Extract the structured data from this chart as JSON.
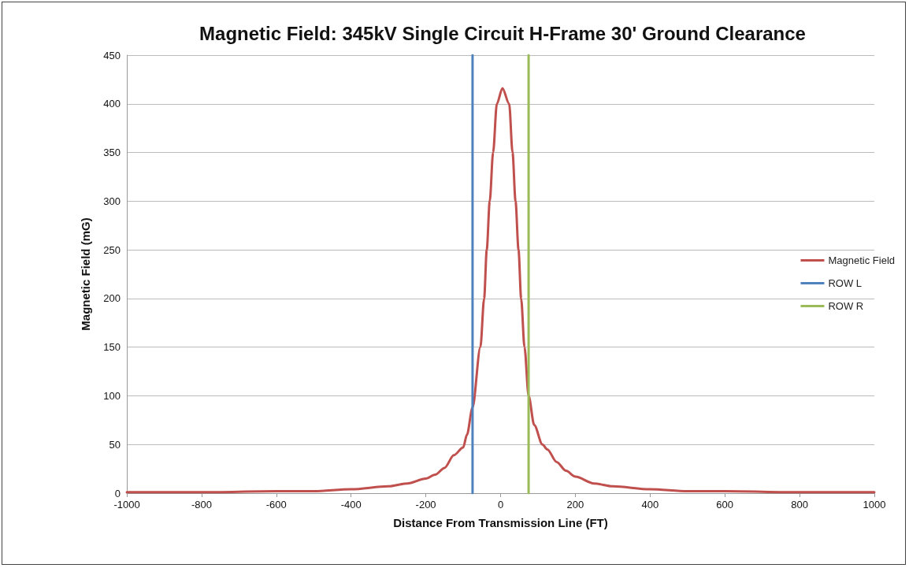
{
  "chart_data": {
    "type": "line",
    "title": "Magnetic Field: 345kV Single Circuit H-Frame 30' Ground Clearance",
    "xlabel": "Distance From Transmission Line (FT)",
    "ylabel": "Magnetic Field (mG)",
    "xlim": [
      -1000,
      1000
    ],
    "xticks": [
      -1000,
      -800,
      -600,
      -400,
      -200,
      0,
      200,
      400,
      600,
      800,
      1000
    ],
    "ylim": [
      0,
      450
    ],
    "yticks": [
      0,
      50,
      100,
      150,
      200,
      250,
      300,
      350,
      400,
      450
    ],
    "grid": "y",
    "legend": "right",
    "marker": "none",
    "line_style": "solid",
    "series": [
      {
        "name": "Magnetic Field",
        "color": "#c0504d",
        "x": [
          -1000,
          -800,
          -600,
          -500,
          -400,
          -300,
          -250,
          -200,
          -175,
          -150,
          -125,
          -100,
          -90,
          -75,
          -54,
          -44,
          -37,
          -29,
          -20,
          -10,
          5,
          23,
          32,
          40,
          48,
          55,
          64,
          75,
          90,
          112,
          125,
          150,
          175,
          200,
          250,
          300,
          400,
          500,
          600,
          800,
          1000
        ],
        "values": [
          1,
          1,
          2,
          2,
          4,
          7,
          10,
          15,
          19,
          26,
          39,
          47,
          60,
          88,
          150,
          200,
          250,
          300,
          350,
          400,
          416,
          400,
          350,
          300,
          250,
          200,
          150,
          100,
          70,
          50,
          45,
          32,
          23,
          17,
          10,
          7,
          4,
          2,
          2,
          1,
          1
        ]
      },
      {
        "name": "ROW L",
        "color": "#4f81bd",
        "x": [
          -75,
          -75
        ],
        "values": [
          0,
          450
        ]
      },
      {
        "name": "ROW R",
        "color": "#9bbb59",
        "x": [
          75,
          75
        ],
        "values": [
          0,
          450
        ]
      }
    ]
  }
}
